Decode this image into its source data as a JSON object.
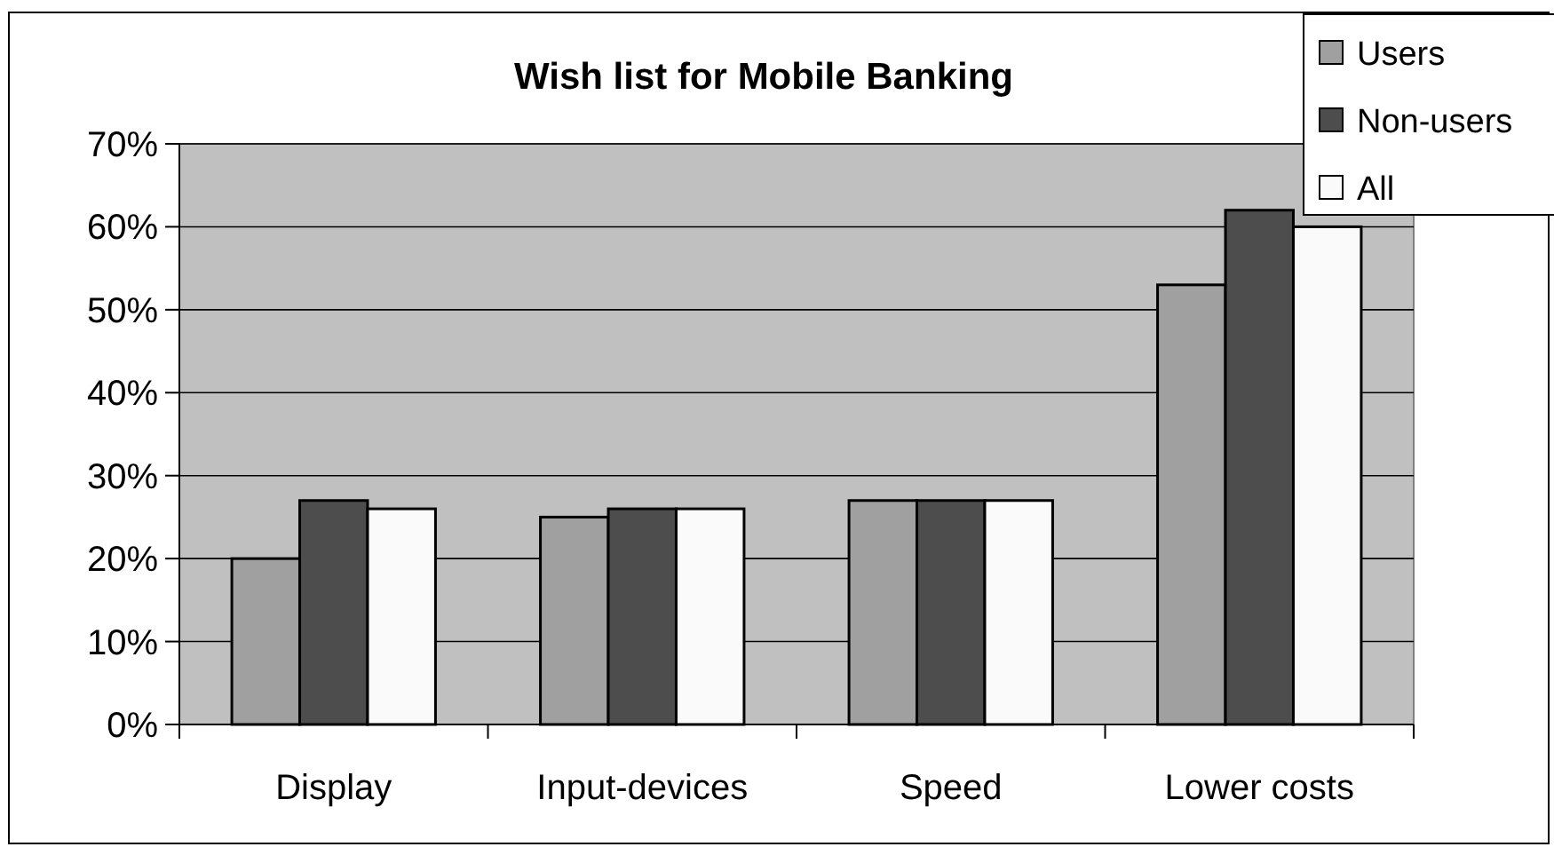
{
  "chart_data": {
    "type": "bar",
    "title": "Wish list for Mobile Banking",
    "categories": [
      "Display",
      "Input-devices",
      "Speed",
      "Lower costs"
    ],
    "series": [
      {
        "name": "Users",
        "color": "#a0a0a0",
        "values": [
          20,
          25,
          27,
          53
        ]
      },
      {
        "name": "Non-users",
        "color": "#4d4d4d",
        "values": [
          27,
          26,
          27,
          62
        ]
      },
      {
        "name": "All",
        "color": "#fafafa",
        "values": [
          26,
          26,
          27,
          60
        ]
      }
    ],
    "ylim": [
      0,
      70
    ],
    "yticks": [
      {
        "value": 0,
        "label": "0%"
      },
      {
        "value": 10,
        "label": "10%"
      },
      {
        "value": 20,
        "label": "20%"
      },
      {
        "value": 30,
        "label": "30%"
      },
      {
        "value": 40,
        "label": "40%"
      },
      {
        "value": 50,
        "label": "50%"
      },
      {
        "value": 60,
        "label": "60%"
      },
      {
        "value": 70,
        "label": "70%"
      }
    ],
    "grid": "y",
    "legend": "top right"
  }
}
